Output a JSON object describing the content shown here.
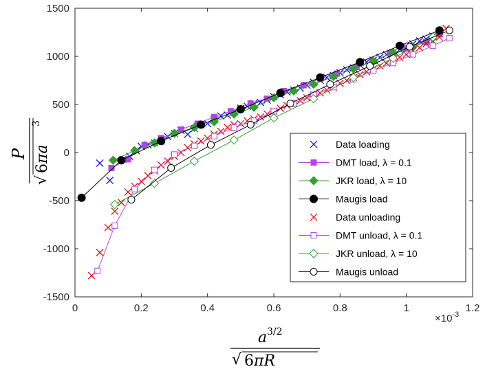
{
  "chart_data": {
    "type": "scatter",
    "xlim": [
      0,
      0.0012
    ],
    "ylim": [
      -1500,
      1500
    ],
    "x_ticks": [
      0,
      0.0002,
      0.0004,
      0.0006,
      0.0008,
      0.001,
      0.0012
    ],
    "x_tick_labels": [
      "0",
      "0.2",
      "0.4",
      "0.6",
      "0.8",
      "1",
      "1.2"
    ],
    "x_multiplier": "×10",
    "x_multiplier_exp": "-3",
    "y_ticks": [
      -1500,
      -1000,
      -500,
      0,
      500,
      1000,
      1500
    ],
    "y_tick_labels": [
      "-1500",
      "-1000",
      "-500",
      "0",
      "500",
      "1000",
      "1500"
    ],
    "xlabel": "a^{3/2} / sqrt(6πR)",
    "ylabel": "P / sqrt(6πa^3)",
    "grid": false,
    "legend_position": "bottom-right",
    "series": [
      {
        "name": "Data loading",
        "color": "#0000ff",
        "marker": "x",
        "line": false,
        "x": [
          7.5e-05,
          0.000105,
          0.000145,
          0.000165,
          0.000185,
          0.0002,
          0.00022,
          0.00024,
          0.00026,
          0.00028,
          0.0003,
          0.00032,
          0.00034,
          0.00036,
          0.00038,
          0.0004,
          0.00042,
          0.00044,
          0.00046,
          0.00048,
          0.0005,
          0.00052,
          0.00054,
          0.00056,
          0.00058,
          0.0006,
          0.00062,
          0.00064,
          0.00066,
          0.00068,
          0.0007,
          0.00072,
          0.00074,
          0.00076,
          0.00078,
          0.0008,
          0.00082,
          0.00084,
          0.00086,
          0.00088,
          0.0009,
          0.00092,
          0.00094,
          0.00096,
          0.00098,
          0.001,
          0.00102,
          0.00104,
          0.00106,
          0.00108,
          0.0011
        ],
        "y": [
          -110,
          -290,
          -70,
          -40,
          20,
          65,
          80,
          100,
          120,
          165,
          200,
          230,
          190,
          250,
          290,
          300,
          345,
          380,
          390,
          420,
          460,
          480,
          510,
          520,
          545,
          580,
          600,
          630,
          650,
          670,
          700,
          730,
          750,
          780,
          800,
          830,
          860,
          880,
          910,
          940,
          960,
          990,
          1020,
          1040,
          1070,
          1100,
          1130,
          1160,
          1180,
          1210,
          1240
        ]
      },
      {
        "name": "DMT load, λ = 0.1",
        "color": "#b245e6",
        "marker": "square-filled",
        "line": true,
        "x": [
          0.00011,
          0.00016,
          0.00021,
          0.00026,
          0.00032,
          0.00037,
          0.00042,
          0.00047,
          0.00053,
          0.00058,
          0.00063,
          0.00069,
          0.00074,
          0.00079,
          0.00085,
          0.0009,
          0.00095,
          0.001,
          0.00106,
          0.0011
        ],
        "y": [
          -160,
          -70,
          80,
          150,
          240,
          300,
          370,
          430,
          510,
          560,
          640,
          700,
          770,
          820,
          890,
          950,
          1030,
          1080,
          1150,
          1230
        ]
      },
      {
        "name": "JKR load, λ = 10",
        "color": "#33a02c",
        "marker": "diamond-filled",
        "line": true,
        "x": [
          0.000115,
          0.00018,
          0.00024,
          0.0003,
          0.00036,
          0.00042,
          0.00048,
          0.00054,
          0.0006,
          0.00066,
          0.00072,
          0.00078,
          0.00084,
          0.0009,
          0.00096,
          0.00102,
          0.00108
        ],
        "y": [
          -80,
          20,
          100,
          200,
          260,
          320,
          400,
          470,
          570,
          640,
          710,
          790,
          870,
          950,
          1040,
          1100,
          1190
        ]
      },
      {
        "name": "Maugis load",
        "color": "#000000",
        "marker": "circle-filled",
        "line": true,
        "x": [
          2e-05,
          0.00014,
          0.00026,
          0.00038,
          0.0005,
          0.00062,
          0.00074,
          0.00086,
          0.00098,
          0.0011
        ],
        "y": [
          -470,
          -80,
          120,
          290,
          450,
          620,
          780,
          940,
          1110,
          1270
        ]
      },
      {
        "name": "Data unloading",
        "color": "#e00000",
        "marker": "x",
        "line": false,
        "x": [
          5e-05,
          7.5e-05,
          0.0001,
          0.00012,
          0.00014,
          0.00016,
          0.00018,
          0.0002,
          0.00022,
          0.00024,
          0.00026,
          0.00028,
          0.0003,
          0.00032,
          0.00034,
          0.00036,
          0.00038,
          0.0004,
          0.00042,
          0.00044,
          0.00046,
          0.00048,
          0.0005,
          0.00052,
          0.00054,
          0.00056,
          0.00058,
          0.0006,
          0.00062,
          0.00064,
          0.00066,
          0.00068,
          0.0007,
          0.00072,
          0.00074,
          0.00076,
          0.00078,
          0.0008,
          0.00082,
          0.00084,
          0.00086,
          0.00088,
          0.0009,
          0.00092,
          0.00094,
          0.00096,
          0.00098,
          0.001,
          0.00102,
          0.00104,
          0.00106,
          0.00108,
          0.0011,
          0.00112
        ],
        "y": [
          -1280,
          -1040,
          -780,
          -610,
          -520,
          -410,
          -350,
          -300,
          -240,
          -190,
          -130,
          -90,
          -40,
          0,
          50,
          90,
          120,
          150,
          190,
          220,
          260,
          290,
          300,
          330,
          350,
          370,
          400,
          430,
          460,
          490,
          510,
          540,
          570,
          600,
          620,
          650,
          680,
          720,
          750,
          780,
          810,
          840,
          870,
          900,
          930,
          960,
          990,
          1020,
          1060,
          1090,
          1130,
          1160,
          1200,
          1290
        ]
      },
      {
        "name": "DMT unload, λ = 0.1",
        "color": "#b245e6",
        "marker": "square-open",
        "line": true,
        "x": [
          6.8e-05,
          0.00012,
          0.00018,
          0.00024,
          0.0003,
          0.00036,
          0.00042,
          0.00048,
          0.00054,
          0.0006,
          0.00066,
          0.00072,
          0.00078,
          0.00084,
          0.0009,
          0.00096,
          0.00102,
          0.00108,
          0.00113
        ],
        "y": [
          -1230,
          -760,
          -380,
          -180,
          -20,
          70,
          170,
          260,
          330,
          430,
          510,
          600,
          680,
          760,
          850,
          930,
          1020,
          1110,
          1190
        ]
      },
      {
        "name": "JKR unload, λ = 10",
        "color": "#33a02c",
        "marker": "diamond-open",
        "line": true,
        "x": [
          0.00012,
          0.00024,
          0.00036,
          0.00048,
          0.0006,
          0.00072,
          0.00084,
          0.00096,
          0.00108
        ],
        "y": [
          -540,
          -320,
          -90,
          130,
          360,
          560,
          780,
          980,
          1200
        ]
      },
      {
        "name": "Maugis unload",
        "color": "#000000",
        "marker": "circle-open",
        "line": true,
        "x": [
          0.00017,
          0.00029,
          0.00041,
          0.00053,
          0.00065,
          0.00077,
          0.00089,
          0.00101,
          0.00113
        ],
        "y": [
          -490,
          -160,
          80,
          290,
          510,
          710,
          900,
          1100,
          1270
        ]
      }
    ]
  }
}
